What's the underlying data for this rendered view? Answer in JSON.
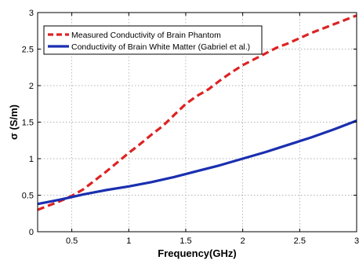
{
  "chart_data": {
    "type": "line",
    "xlabel": "Frequency(GHz)",
    "ylabel": "σ (S/m)",
    "xlim": [
      0.2,
      3
    ],
    "ylim": [
      0,
      3
    ],
    "x_ticks": [
      0.5,
      1,
      1.5,
      2,
      2.5,
      3
    ],
    "x_tick_labels": [
      "0.5",
      "1",
      "1.5",
      "2",
      "2.5",
      "3"
    ],
    "y_ticks": [
      0,
      0.5,
      1,
      1.5,
      2,
      2.5,
      3
    ],
    "y_tick_labels": [
      "0",
      "0.5",
      "1",
      "1.5",
      "2",
      "2.5",
      "3"
    ],
    "grid": true,
    "legend_position": "top-left",
    "series": [
      {
        "name": "Measured Conductivity of Brain Phantom",
        "color": "#dd2222",
        "style": "dashed",
        "x": [
          0.2,
          0.3,
          0.4,
          0.5,
          0.6,
          0.7,
          0.8,
          0.9,
          1.0,
          1.1,
          1.2,
          1.3,
          1.4,
          1.5,
          1.6,
          1.7,
          1.8,
          1.9,
          2.0,
          2.1,
          2.2,
          2.3,
          2.4,
          2.5,
          2.6,
          2.7,
          2.8,
          2.9,
          3.0
        ],
        "y": [
          0.3,
          0.36,
          0.42,
          0.49,
          0.58,
          0.7,
          0.82,
          0.95,
          1.08,
          1.2,
          1.33,
          1.45,
          1.6,
          1.75,
          1.86,
          1.95,
          2.07,
          2.18,
          2.28,
          2.36,
          2.44,
          2.52,
          2.58,
          2.65,
          2.72,
          2.78,
          2.84,
          2.9,
          2.96
        ]
      },
      {
        "name": "Conductivity of Brain White Matter (Gabriel et al.)",
        "color": "#1a2fb0",
        "style": "solid",
        "x": [
          0.2,
          0.4,
          0.6,
          0.8,
          1.0,
          1.2,
          1.4,
          1.6,
          1.8,
          2.0,
          2.2,
          2.4,
          2.6,
          2.8,
          3.0
        ],
        "y": [
          0.38,
          0.44,
          0.51,
          0.57,
          0.62,
          0.68,
          0.75,
          0.83,
          0.91,
          1.0,
          1.09,
          1.19,
          1.29,
          1.4,
          1.52
        ]
      }
    ]
  }
}
